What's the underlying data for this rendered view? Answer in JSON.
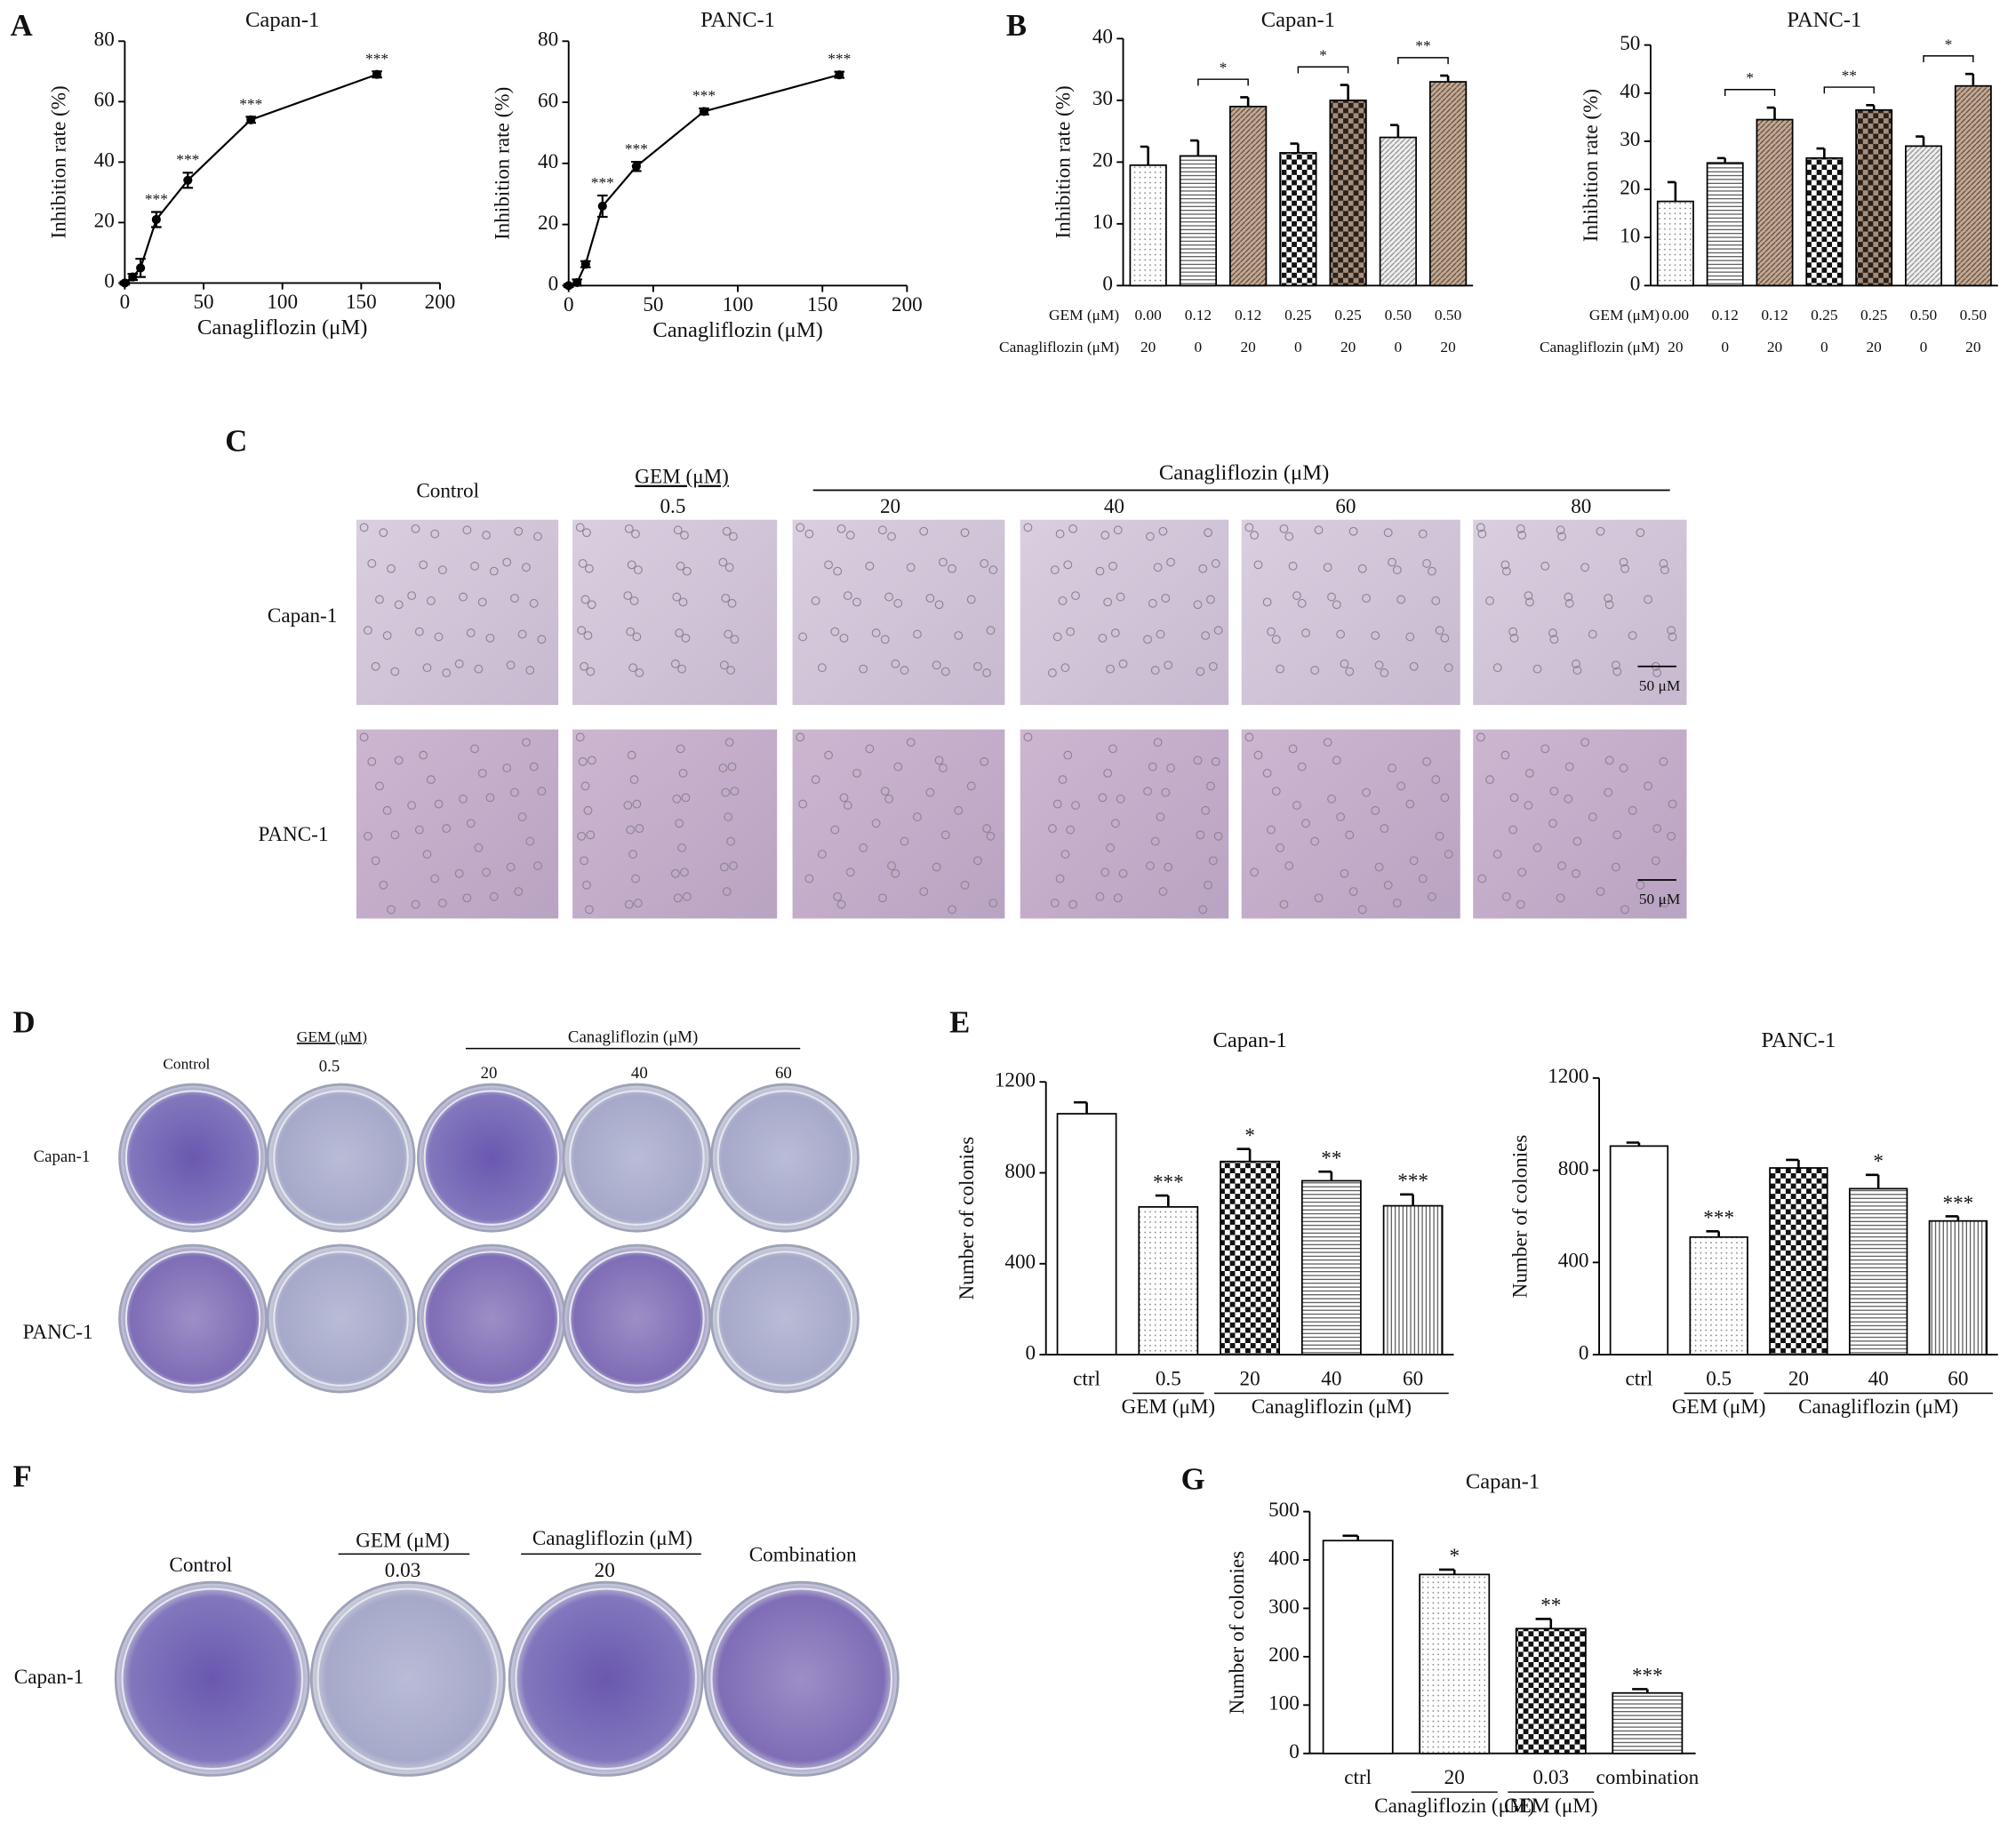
{
  "chart_data": [
    {
      "type": "line",
      "title": "Capan-1",
      "x_label": "Canagliflozin (μM)",
      "y_label": "Inhibition rate (%)",
      "color": "#000000",
      "x": [
        0,
        5,
        10,
        20,
        40,
        80,
        160
      ],
      "values": [
        0,
        2,
        5,
        21,
        34,
        54,
        69
      ],
      "errors": [
        0.5,
        1,
        3,
        2.5,
        2.5,
        1,
        1
      ],
      "annotations": [
        null,
        null,
        null,
        "***",
        "***",
        "***",
        "***"
      ],
      "xlim": [
        0,
        200
      ],
      "xticks": [
        0,
        50,
        100,
        150,
        200
      ],
      "ylim": [
        0,
        80
      ],
      "yticks": [
        0,
        20,
        40,
        60,
        80
      ]
    },
    {
      "type": "line",
      "title": "PANC-1",
      "x_label": "Canagliflozin (μM)",
      "y_label": "Inhibition rate (%)",
      "color": "#000000",
      "x": [
        0,
        5,
        10,
        20,
        40,
        80,
        160
      ],
      "values": [
        0,
        1,
        7,
        26,
        39,
        57,
        69
      ],
      "errors": [
        0.5,
        1,
        1,
        3.5,
        1.5,
        1,
        1
      ],
      "annotations": [
        null,
        null,
        null,
        "***",
        "***",
        "***",
        "***"
      ],
      "xlim": [
        0,
        200
      ],
      "xticks": [
        0,
        50,
        100,
        150,
        200
      ],
      "ylim": [
        0,
        80
      ],
      "yticks": [
        0,
        20,
        40,
        60,
        80
      ]
    },
    {
      "type": "bar",
      "title": "Capan-1",
      "y_label": "Inhibition rate (%)",
      "category_rows": [
        {
          "name": "GEM (μM)",
          "labels": [
            "0.00",
            "0.12",
            "0.12",
            "0.25",
            "0.25",
            "0.50",
            "0.50"
          ]
        },
        {
          "name": "Canagliflozin (μM)",
          "labels": [
            "20",
            "0",
            "20",
            "0",
            "20",
            "0",
            "20"
          ]
        }
      ],
      "values": [
        19.5,
        21,
        29,
        21.5,
        30,
        24,
        33
      ],
      "errors": [
        3,
        2.5,
        1.5,
        1.5,
        2.5,
        2,
        1
      ],
      "patterns": [
        "dots",
        "hlines",
        "diag-brown",
        "checker",
        "checker-brown",
        "diag-light",
        "diag-brown"
      ],
      "comparisons": [
        {
          "pair": [
            1,
            2
          ],
          "label": "*"
        },
        {
          "pair": [
            3,
            4
          ],
          "label": "*"
        },
        {
          "pair": [
            5,
            6
          ],
          "label": "**"
        }
      ],
      "ylim": [
        0,
        40
      ],
      "yticks": [
        0,
        10,
        20,
        30,
        40
      ]
    },
    {
      "type": "bar",
      "title": "PANC-1",
      "y_label": "Inhibition rate (%)",
      "category_rows": [
        {
          "name": "GEM (μM)",
          "labels": [
            "0.00",
            "0.12",
            "0.12",
            "0.25",
            "0.25",
            "0.50",
            "0.50"
          ]
        },
        {
          "name": "Canagliflozin (μM)",
          "labels": [
            "20",
            "0",
            "20",
            "0",
            "20",
            "0",
            "20"
          ]
        }
      ],
      "values": [
        17.5,
        25.5,
        34.5,
        26.5,
        36.5,
        29,
        41.5
      ],
      "errors": [
        4,
        1,
        2.5,
        2,
        1,
        2,
        2.5
      ],
      "patterns": [
        "dots",
        "hlines",
        "diag-brown",
        "checker",
        "checker-brown",
        "diag-light",
        "diag-brown"
      ],
      "comparisons": [
        {
          "pair": [
            1,
            2
          ],
          "label": "*"
        },
        {
          "pair": [
            3,
            4
          ],
          "label": "**"
        },
        {
          "pair": [
            5,
            6
          ],
          "label": "*"
        }
      ],
      "ylim": [
        0,
        50
      ],
      "yticks": [
        0,
        10,
        20,
        30,
        40,
        50
      ]
    },
    {
      "type": "bar",
      "title": "Capan-1",
      "y_label": "Number of colonies",
      "categories": [
        "ctrl",
        "0.5",
        "20",
        "40",
        "60"
      ],
      "values": [
        1060,
        650,
        850,
        765,
        655
      ],
      "errors": [
        50,
        50,
        55,
        40,
        50
      ],
      "annotations": [
        null,
        "***",
        "*",
        "**",
        "***"
      ],
      "patterns": [
        "white",
        "dots",
        "checker",
        "hlines",
        "vlines"
      ],
      "groups": [
        {
          "label": "GEM (μM)",
          "span": [
            1,
            1
          ]
        },
        {
          "label": "Canagliflozin (μM)",
          "span": [
            2,
            4
          ]
        }
      ],
      "ylim": [
        0,
        1200
      ],
      "yticks": [
        0,
        400,
        800,
        1200
      ]
    },
    {
      "type": "bar",
      "title": "PANC-1",
      "y_label": "Number of colonies",
      "categories": [
        "ctrl",
        "0.5",
        "20",
        "40",
        "60"
      ],
      "values": [
        905,
        510,
        810,
        720,
        580
      ],
      "errors": [
        15,
        25,
        35,
        60,
        20
      ],
      "annotations": [
        null,
        "***",
        null,
        "*",
        "***"
      ],
      "patterns": [
        "white",
        "dots",
        "checker",
        "hlines",
        "vlines"
      ],
      "groups": [
        {
          "label": "GEM (μM)",
          "span": [
            1,
            1
          ]
        },
        {
          "label": "Canagliflozin (μM)",
          "span": [
            2,
            4
          ]
        }
      ],
      "ylim": [
        0,
        1200
      ],
      "yticks": [
        0,
        400,
        800,
        1200
      ]
    },
    {
      "type": "bar",
      "title": "Capan-1",
      "y_label": "Number of colonies",
      "categories": [
        "ctrl",
        "20",
        "0.03",
        "combination"
      ],
      "values": [
        440,
        370,
        258,
        125
      ],
      "errors": [
        10,
        10,
        20,
        8
      ],
      "annotations": [
        null,
        "*",
        "**",
        "***"
      ],
      "patterns": [
        "white",
        "dots",
        "checker",
        "hlines"
      ],
      "groups": [
        {
          "label": "Canagliflozin (μM)",
          "span": [
            1,
            1
          ]
        },
        {
          "label": "GEM (μM)",
          "span": [
            2,
            2
          ]
        }
      ],
      "ylim": [
        0,
        500
      ],
      "yticks": [
        0,
        100,
        200,
        300,
        400,
        500
      ]
    }
  ],
  "figure": {
    "panel_labels": [
      "A",
      "B",
      "C",
      "D",
      "E",
      "F",
      "G"
    ],
    "C": {
      "columns": [
        "Control",
        "0.5",
        "20",
        "40",
        "60",
        "80"
      ],
      "gem_label": "GEM (μM)",
      "canag_label": "Canagliflozin (μM)",
      "rows": [
        "Capan-1",
        "PANC-1"
      ],
      "scale_bar": "50 μM"
    },
    "D": {
      "columns": [
        "Control",
        "0.5",
        "20",
        "40",
        "60"
      ],
      "gem_label": "GEM (μM)",
      "canag_label": "Canagliflozin (μM)",
      "rows": [
        "Capan-1",
        "PANC-1"
      ]
    },
    "F": {
      "columns": [
        "Control",
        "0.03",
        "20",
        "Combination"
      ],
      "gem_label": "GEM (μM)",
      "canag_label": "Canagliflozin (μM)",
      "row": "Capan-1"
    }
  }
}
